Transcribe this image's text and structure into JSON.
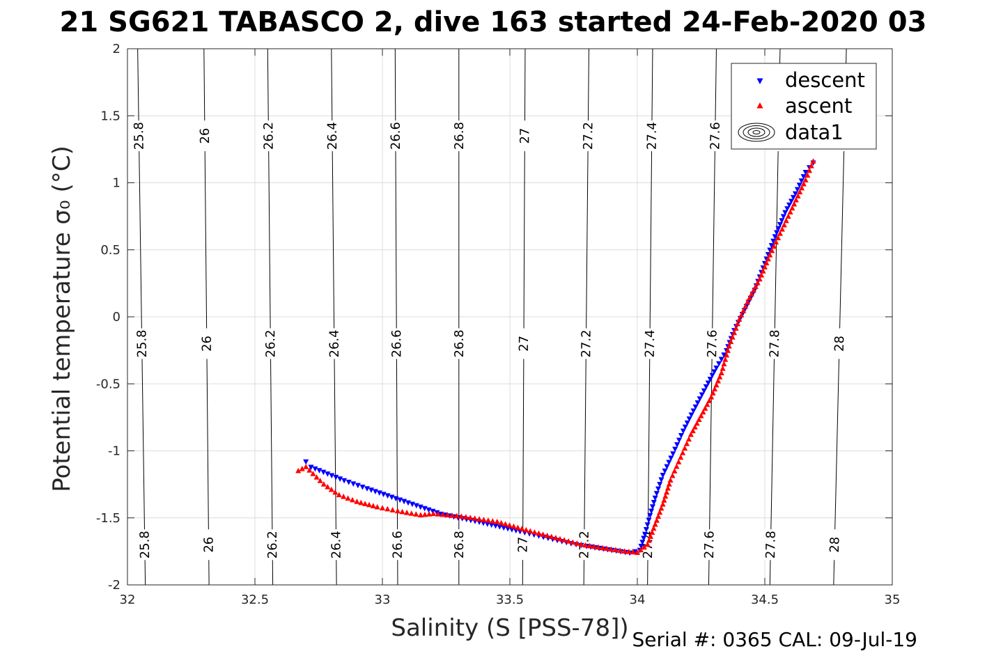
{
  "figure": {
    "title": "21 SG621 TABASCO 2, dive 163 started 24-Feb-2020 03",
    "footer": "Serial #: 0365  CAL: 09-Jul-19"
  },
  "chart_data": {
    "type": "scatter",
    "xlabel": "Salinity (S [PSS-78])",
    "ylabel": "Potential temperature σ₀ (°C)",
    "xlim": [
      32,
      35
    ],
    "ylim": [
      -2,
      2
    ],
    "xticks": [
      32,
      32.5,
      33,
      33.5,
      34,
      34.5,
      35
    ],
    "xtick_labels": [
      "32",
      "32.5",
      "33",
      "33.5",
      "34",
      "34.5",
      "35"
    ],
    "yticks": [
      -2,
      -1.5,
      -1,
      -0.5,
      0,
      0.5,
      1,
      1.5,
      2
    ],
    "ytick_labels": [
      "-2",
      "-1.5",
      "-1",
      "-0.5",
      "0",
      "0.5",
      "1",
      "1.5",
      "2"
    ],
    "grid": true,
    "legend_position": "top-right",
    "legend": [
      "descent",
      "ascent",
      "data1"
    ],
    "colors": {
      "descent": "#0000ff",
      "ascent": "#ff0000",
      "contour": "#000000",
      "grid": "#dcdcdc"
    },
    "series": [
      {
        "name": "descent",
        "marker": "triangle-down",
        "points": [
          [
            32.7,
            -1.08
          ],
          [
            32.72,
            -1.12
          ],
          [
            32.85,
            -1.22
          ],
          [
            32.94,
            -1.28
          ],
          [
            33.23,
            -1.47
          ],
          [
            33.38,
            -1.53
          ],
          [
            33.54,
            -1.6
          ],
          [
            33.65,
            -1.65
          ],
          [
            33.74,
            -1.69
          ],
          [
            33.8,
            -1.71
          ],
          [
            33.9,
            -1.74
          ],
          [
            33.97,
            -1.76
          ],
          [
            34.01,
            -1.74
          ],
          [
            34.03,
            -1.62
          ],
          [
            34.05,
            -1.48
          ],
          [
            34.07,
            -1.35
          ],
          [
            34.1,
            -1.18
          ],
          [
            34.14,
            -1.02
          ],
          [
            34.18,
            -0.85
          ],
          [
            34.22,
            -0.7
          ],
          [
            34.27,
            -0.52
          ],
          [
            34.31,
            -0.38
          ],
          [
            34.35,
            -0.25
          ],
          [
            34.38,
            -0.1
          ],
          [
            34.42,
            0.05
          ],
          [
            34.46,
            0.2
          ],
          [
            34.5,
            0.4
          ],
          [
            34.54,
            0.6
          ],
          [
            34.58,
            0.78
          ],
          [
            34.62,
            0.92
          ],
          [
            34.66,
            1.08
          ],
          [
            34.69,
            1.15
          ]
        ]
      },
      {
        "name": "ascent",
        "marker": "triangle-up",
        "points": [
          [
            32.67,
            -1.15
          ],
          [
            32.7,
            -1.12
          ],
          [
            32.77,
            -1.25
          ],
          [
            32.83,
            -1.33
          ],
          [
            32.9,
            -1.38
          ],
          [
            32.98,
            -1.42
          ],
          [
            33.06,
            -1.45
          ],
          [
            33.15,
            -1.48
          ],
          [
            33.2,
            -1.47
          ],
          [
            33.31,
            -1.49
          ],
          [
            33.45,
            -1.53
          ],
          [
            33.58,
            -1.6
          ],
          [
            33.68,
            -1.65
          ],
          [
            33.78,
            -1.7
          ],
          [
            33.88,
            -1.73
          ],
          [
            33.95,
            -1.75
          ],
          [
            34.0,
            -1.76
          ],
          [
            34.04,
            -1.7
          ],
          [
            34.07,
            -1.55
          ],
          [
            34.1,
            -1.4
          ],
          [
            34.13,
            -1.22
          ],
          [
            34.17,
            -1.05
          ],
          [
            34.21,
            -0.88
          ],
          [
            34.25,
            -0.74
          ],
          [
            34.29,
            -0.6
          ],
          [
            34.33,
            -0.42
          ],
          [
            34.36,
            -0.22
          ],
          [
            34.4,
            -0.02
          ],
          [
            34.44,
            0.14
          ],
          [
            34.48,
            0.28
          ],
          [
            34.52,
            0.46
          ],
          [
            34.56,
            0.62
          ],
          [
            34.6,
            0.78
          ],
          [
            34.63,
            0.9
          ],
          [
            34.66,
            1.02
          ],
          [
            34.69,
            1.16
          ]
        ]
      }
    ],
    "sigma0_contours": [
      {
        "label": "25.8",
        "s_at_tmin": 32.07,
        "s_at_tmax": 32.04
      },
      {
        "label": "26",
        "s_at_tmin": 32.32,
        "s_at_tmax": 32.3
      },
      {
        "label": "26.2",
        "s_at_tmin": 32.57,
        "s_at_tmax": 32.55
      },
      {
        "label": "26.4",
        "s_at_tmin": 32.82,
        "s_at_tmax": 32.8
      },
      {
        "label": "26.6",
        "s_at_tmin": 33.06,
        "s_at_tmax": 33.05
      },
      {
        "label": "26.8",
        "s_at_tmin": 33.3,
        "s_at_tmax": 33.3
      },
      {
        "label": "27",
        "s_at_tmin": 33.55,
        "s_at_tmax": 33.56
      },
      {
        "label": "27.2",
        "s_at_tmin": 33.79,
        "s_at_tmax": 33.81
      },
      {
        "label": "27.4",
        "s_at_tmin": 34.04,
        "s_at_tmax": 34.06
      },
      {
        "label": "27.6",
        "s_at_tmin": 34.28,
        "s_at_tmax": 34.31
      },
      {
        "label": "27.8",
        "s_at_tmin": 34.52,
        "s_at_tmax": 34.56
      },
      {
        "label": "28",
        "s_at_tmin": 34.77,
        "s_at_tmax": 34.82
      }
    ]
  }
}
